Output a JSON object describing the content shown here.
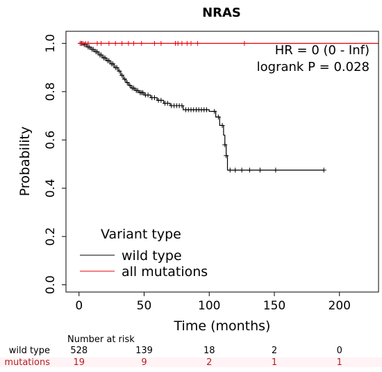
{
  "chart_data": {
    "type": "line",
    "title": "NRAS",
    "xlabel": "Time (months)",
    "ylabel": "Probability",
    "xlim": [
      -10,
      230
    ],
    "ylim": [
      -0.03,
      1.05
    ],
    "xticks": [
      0,
      50,
      100,
      150,
      200
    ],
    "yticks": [
      0.0,
      0.2,
      0.4,
      0.6,
      0.8,
      1.0
    ],
    "xtick_labels": [
      "0",
      "50",
      "100",
      "150",
      "200"
    ],
    "ytick_labels": [
      "0.0",
      "0.2",
      "0.4",
      "0.6",
      "0.8",
      "1.0"
    ],
    "annotation_hr": "HR = 0 (0 - Inf)",
    "annotation_logrank": "logrank P = 0.028",
    "legend": {
      "title": "Variant type",
      "placement": "bottom-left",
      "entries": [
        "wild type",
        "all mutations"
      ]
    },
    "series": [
      {
        "name": "wild type",
        "color": "#000000",
        "steps": [
          [
            0,
            1.0
          ],
          [
            3,
            0.995
          ],
          [
            6,
            0.985
          ],
          [
            9,
            0.975
          ],
          [
            12,
            0.965
          ],
          [
            15,
            0.952
          ],
          [
            18,
            0.94
          ],
          [
            21,
            0.928
          ],
          [
            24,
            0.915
          ],
          [
            27,
            0.9
          ],
          [
            30,
            0.885
          ],
          [
            32,
            0.868
          ],
          [
            34,
            0.852
          ],
          [
            36,
            0.838
          ],
          [
            38,
            0.826
          ],
          [
            40,
            0.815
          ],
          [
            43,
            0.805
          ],
          [
            46,
            0.796
          ],
          [
            50,
            0.786
          ],
          [
            55,
            0.775
          ],
          [
            60,
            0.764
          ],
          [
            65,
            0.752
          ],
          [
            70,
            0.742
          ],
          [
            80,
            0.725
          ],
          [
            100,
            0.718
          ],
          [
            105,
            0.695
          ],
          [
            108,
            0.66
          ],
          [
            111,
            0.62
          ],
          [
            112,
            0.58
          ],
          [
            113,
            0.535
          ],
          [
            114,
            0.475
          ],
          [
            188,
            0.475
          ]
        ],
        "censor_times": [
          1,
          2,
          4,
          5,
          7,
          8,
          10,
          11,
          13,
          14,
          16,
          17,
          19,
          20,
          22,
          23,
          25,
          26,
          28,
          29,
          31,
          33,
          35,
          37,
          39,
          41,
          42,
          44,
          45,
          47,
          48,
          49,
          51,
          53,
          56,
          58,
          61,
          63,
          66,
          68,
          71,
          73,
          75,
          77,
          79,
          82,
          84,
          86,
          88,
          90,
          92,
          94,
          96,
          98,
          104,
          107,
          110,
          112,
          113,
          116,
          120,
          125,
          131,
          139,
          151,
          188
        ]
      },
      {
        "name": "all mutations",
        "color": "#e8000b",
        "steps": [
          [
            0,
            1.0
          ],
          [
            230,
            1.0
          ]
        ],
        "censor_times": [
          1,
          3,
          5,
          7,
          14,
          17,
          23,
          28,
          33,
          38,
          42,
          48,
          58,
          63,
          74,
          76,
          79,
          83,
          86,
          91,
          127
        ]
      }
    ],
    "risk_table": {
      "header": "Number at risk",
      "times": [
        0,
        50,
        100,
        150,
        200
      ],
      "rows": [
        {
          "label": "wild type",
          "color": "#000000",
          "values": [
            "528",
            "139",
            "18",
            "2",
            "0"
          ]
        },
        {
          "label": "mutations",
          "color": "#b22222",
          "values": [
            "19",
            "9",
            "2",
            "1",
            "1"
          ]
        }
      ]
    }
  }
}
